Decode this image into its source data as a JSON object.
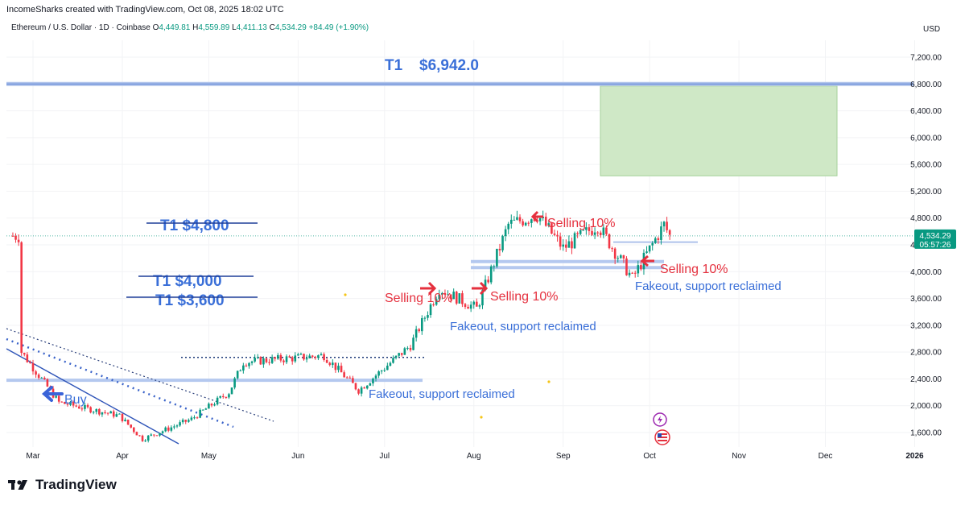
{
  "header": {
    "credit": "IncomeSharks created with TradingView.com, Oct 08, 2025 18:02 UTC"
  },
  "symbol": {
    "name": "Ethereum / U.S. Dollar · 1D · Coinbase",
    "o_label": "O",
    "o_value": "4,449.81",
    "h_label": "H",
    "h_value": "4,559.89",
    "l_label": "L",
    "l_value": "4,411.13",
    "c_label": "C",
    "c_value": "4,534.29",
    "change": "+84.49 (+1.90%)"
  },
  "currency": "USD",
  "price_badge": {
    "price": "4,534.29",
    "countdown": "05:57:26"
  },
  "brand": {
    "text": "TradingView",
    "logo_icon": "tradingview-logo-icon"
  },
  "colors": {
    "up": "#089981",
    "down": "#f23645",
    "annotation_blue": "#3a6fd8",
    "annotation_red": "#e5303e",
    "target_box": "#cfe8c6"
  },
  "chart_data": {
    "type": "candlestick",
    "y_axis": {
      "range": [
        1400,
        7500
      ],
      "ticks": [
        "7,200.00",
        "6,800.00",
        "6,400.00",
        "6,000.00",
        "5,600.00",
        "5,200.00",
        "4,800.00",
        "4,400.00",
        "4,000.00",
        "3,600.00",
        "3,200.00",
        "2,800.00",
        "2,400.00",
        "2,000.00",
        "1,600.00"
      ]
    },
    "x_axis": {
      "ticks": [
        "Mar",
        "Apr",
        "May",
        "Jun",
        "Jul",
        "Aug",
        "Sep",
        "Oct",
        "Nov",
        "Dec",
        "2026"
      ]
    },
    "ohlc_key_points": [
      {
        "x": "2025-02-25",
        "close": 2800
      },
      {
        "x": "2025-03-10",
        "close": 2050
      },
      {
        "x": "2025-03-31",
        "close": 1850
      },
      {
        "x": "2025-04-08",
        "close": 1500
      },
      {
        "x": "2025-04-25",
        "close": 1800
      },
      {
        "x": "2025-05-08",
        "close": 2200
      },
      {
        "x": "2025-05-13",
        "close": 2650
      },
      {
        "x": "2025-06-10",
        "close": 2750
      },
      {
        "x": "2025-06-22",
        "close": 2230
      },
      {
        "x": "2025-07-10",
        "close": 2900
      },
      {
        "x": "2025-07-20",
        "close": 3750
      },
      {
        "x": "2025-08-02",
        "close": 3450
      },
      {
        "x": "2025-08-13",
        "close": 4700
      },
      {
        "x": "2025-08-23",
        "close": 4850
      },
      {
        "x": "2025-09-01",
        "close": 4350
      },
      {
        "x": "2025-09-13",
        "close": 4700
      },
      {
        "x": "2025-09-25",
        "close": 3900
      },
      {
        "x": "2025-10-06",
        "close": 4700
      },
      {
        "x": "2025-10-08",
        "close": 4534.29
      }
    ],
    "annotations": [
      {
        "text": "T1",
        "style": "blue"
      },
      {
        "text": "$6,942.0",
        "style": "blue"
      },
      {
        "text": "T1 $4,800",
        "style": "blue",
        "struck": true
      },
      {
        "text": "T1 $4,000",
        "style": "blue",
        "struck": true
      },
      {
        "text": "T1 $3,600",
        "style": "blue",
        "struck": true
      },
      {
        "text": "Buy",
        "style": "blue"
      },
      {
        "text": "Selling 10%",
        "style": "red"
      },
      {
        "text": "Selling 10%",
        "style": "red"
      },
      {
        "text": "Selling 10%",
        "style": "red"
      },
      {
        "text": "Selling 10%",
        "style": "red"
      },
      {
        "text": "Fakeout, support reclaimed",
        "style": "blue"
      },
      {
        "text": "Fakeout, support reclaimed",
        "style": "blue"
      },
      {
        "text": "Fakeout, support reclaimed",
        "style": "blue"
      }
    ],
    "target_zone": {
      "low": 5430,
      "high": 6770
    },
    "target_line": 6800,
    "last_price": 4534.29
  }
}
